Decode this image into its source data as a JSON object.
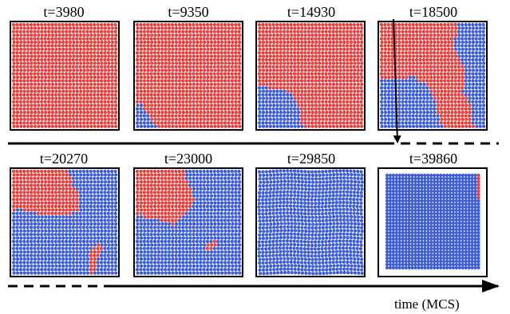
{
  "colors": {
    "red": "#e5403e",
    "blue": "#3d5dd6",
    "frame": "#000000"
  },
  "frames": [
    {
      "label": "t=3980",
      "phase": "all-red"
    },
    {
      "label": "t=9350",
      "phase": "blue-corner-small"
    },
    {
      "label": "t=14930",
      "phase": "blue-bottom-left"
    },
    {
      "label": "t=18500",
      "phase": "blue-spreading"
    },
    {
      "label": "t=20270",
      "phase": "blue-majority"
    },
    {
      "label": "t=23000",
      "phase": "red-top-left-remnant"
    },
    {
      "label": "t=29850",
      "phase": "all-blue"
    },
    {
      "label": "t=39860",
      "phase": "all-blue-shrunk"
    }
  ],
  "axis_label": "time (MCS)"
}
